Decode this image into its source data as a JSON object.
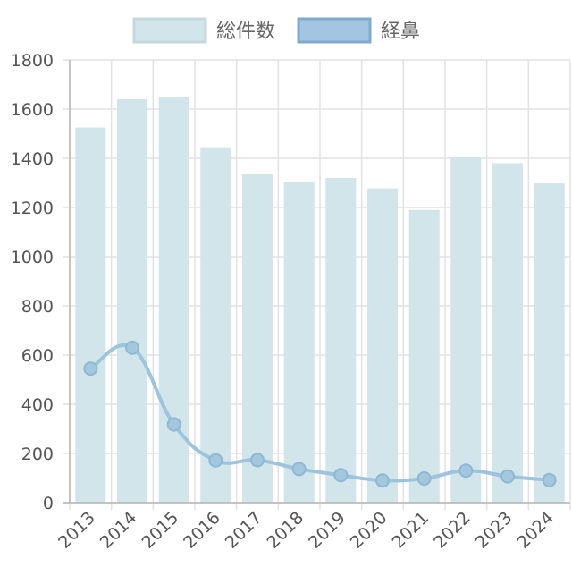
{
  "chart_data": {
    "type": "bar",
    "categories": [
      "2013",
      "2014",
      "2015",
      "2016",
      "2017",
      "2018",
      "2019",
      "2020",
      "2021",
      "2022",
      "2023",
      "2024"
    ],
    "series": [
      {
        "name": "総件数",
        "type": "bar",
        "color": "#d2e5ea",
        "values": [
          1525,
          1640,
          1650,
          1445,
          1335,
          1305,
          1320,
          1278,
          1190,
          1405,
          1380,
          1298
        ]
      },
      {
        "name": "経鼻",
        "type": "line",
        "color": "#9dc3dd",
        "values": [
          545,
          630,
          318,
          172,
          173,
          137,
          112,
          90,
          98,
          130,
          107,
          92
        ]
      }
    ],
    "title": "",
    "xlabel": "",
    "ylabel": "",
    "ylim": [
      0,
      1800
    ],
    "yticks": [
      0,
      200,
      400,
      600,
      800,
      1000,
      1200,
      1400,
      1600,
      1800
    ],
    "grid": true,
    "legend_position": "top-center"
  }
}
